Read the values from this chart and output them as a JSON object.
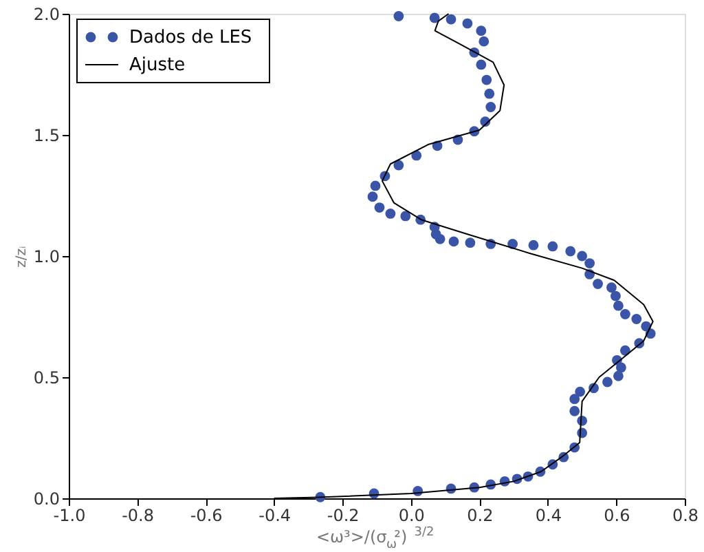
{
  "chart_data": {
    "type": "scatter",
    "xlabel": "<ω³>/(σ$_{ω}$²)$^{3/2}$",
    "ylabel": "z/zᵢ",
    "xlim": [
      -1.0,
      0.8
    ],
    "ylim": [
      0.0,
      2.0
    ],
    "xticks": [
      {
        "value": -1.0,
        "label": "-1.0"
      },
      {
        "value": -0.8,
        "label": "-0.8"
      },
      {
        "value": -0.6,
        "label": "-0.6"
      },
      {
        "value": -0.4,
        "label": "-0.4"
      },
      {
        "value": -0.2,
        "label": "-0.2"
      },
      {
        "value": 0.0,
        "label": "0.0"
      },
      {
        "value": 0.2,
        "label": "0.2"
      },
      {
        "value": 0.4,
        "label": "0.4"
      },
      {
        "value": 0.6,
        "label": "0.6"
      },
      {
        "value": 0.8,
        "label": "0.8"
      }
    ],
    "yticks": [
      {
        "value": 0.0,
        "label": "0.0"
      },
      {
        "value": 0.5,
        "label": "0.5"
      },
      {
        "value": 1.0,
        "label": "1.0"
      },
      {
        "value": 1.5,
        "label": "1.5"
      },
      {
        "value": 2.0,
        "label": "2.0"
      }
    ],
    "grid": false,
    "legend": "top left",
    "series": [
      {
        "name": "Dados de LES",
        "marker": "circle",
        "color": "#3a55a8",
        "x": [
          -0.265,
          -0.108,
          0.02,
          0.117,
          0.185,
          0.233,
          0.274,
          0.31,
          0.342,
          0.378,
          0.414,
          0.446,
          0.478,
          0.5,
          0.5,
          0.478,
          0.478,
          0.494,
          0.534,
          0.574,
          0.606,
          0.614,
          0.602,
          0.626,
          0.667,
          0.7,
          0.687,
          0.659,
          0.626,
          0.606,
          0.598,
          0.586,
          0.546,
          0.522,
          0.522,
          0.5,
          0.466,
          0.414,
          0.358,
          0.297,
          0.233,
          0.173,
          0.125,
          0.085,
          0.073,
          0.069,
          0.028,
          -0.016,
          -0.06,
          -0.092,
          -0.112,
          -0.104,
          -0.076,
          -0.036,
          0.016,
          0.077,
          0.137,
          0.185,
          0.217,
          0.233,
          0.229,
          0.221,
          0.205,
          0.185,
          0.213,
          0.205,
          0.165,
          0.117,
          0.069,
          -0.036
        ],
        "values": [
          0.005,
          0.02,
          0.03,
          0.04,
          0.045,
          0.057,
          0.07,
          0.08,
          0.09,
          0.11,
          0.14,
          0.17,
          0.21,
          0.27,
          0.32,
          0.36,
          0.41,
          0.44,
          0.455,
          0.48,
          0.505,
          0.54,
          0.57,
          0.61,
          0.64,
          0.68,
          0.71,
          0.74,
          0.76,
          0.795,
          0.835,
          0.87,
          0.885,
          0.925,
          0.97,
          1.0,
          1.02,
          1.04,
          1.045,
          1.05,
          1.05,
          1.055,
          1.06,
          1.07,
          1.09,
          1.12,
          1.15,
          1.165,
          1.175,
          1.2,
          1.245,
          1.29,
          1.33,
          1.375,
          1.415,
          1.455,
          1.48,
          1.515,
          1.555,
          1.615,
          1.67,
          1.727,
          1.79,
          1.84,
          1.886,
          1.93,
          1.96,
          1.977,
          1.983,
          1.99
        ]
      },
      {
        "name": "Ajuste",
        "type": "line",
        "line_style": "solid",
        "color": "#000000",
        "x": [
          -0.4,
          -0.27,
          0.0,
          0.2,
          0.3,
          0.38,
          0.44,
          0.493,
          0.5,
          0.55,
          0.62,
          0.68,
          0.707,
          0.68,
          0.594,
          0.5,
          0.35,
          0.165,
          0.03,
          -0.05,
          -0.084,
          -0.06,
          0.05,
          0.2,
          0.26,
          0.272,
          0.24,
          0.15,
          0.07,
          0.08,
          0.11
        ],
        "values": [
          0.0,
          0.004,
          0.02,
          0.045,
          0.07,
          0.11,
          0.17,
          0.23,
          0.4,
          0.5,
          0.58,
          0.65,
          0.73,
          0.8,
          0.9,
          0.95,
          1.01,
          1.09,
          1.15,
          1.22,
          1.31,
          1.38,
          1.46,
          1.52,
          1.6,
          1.706,
          1.8,
          1.87,
          1.93,
          1.97,
          2.0
        ]
      }
    ]
  }
}
